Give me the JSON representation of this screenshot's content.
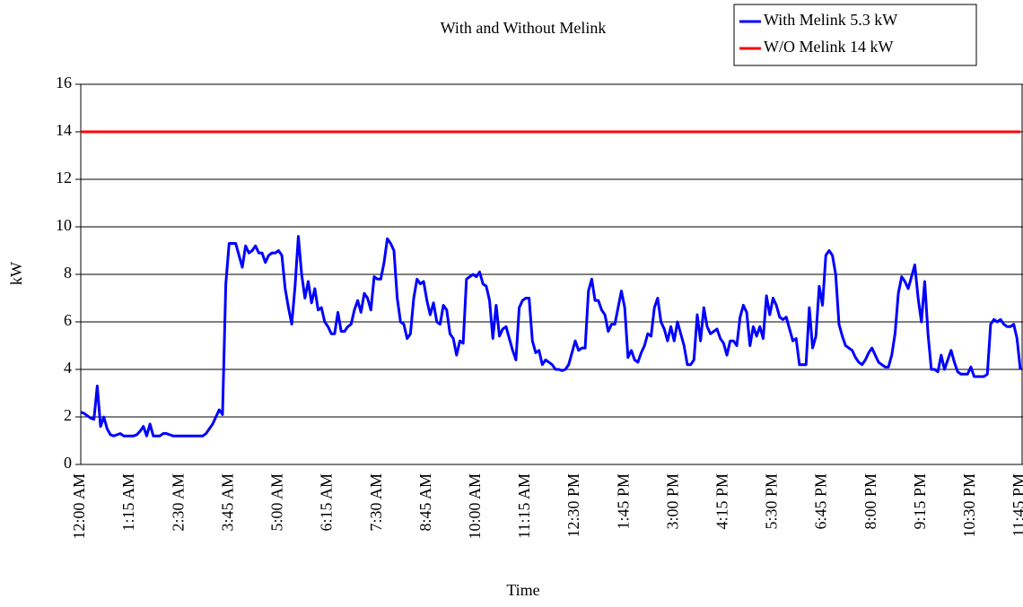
{
  "chart_data": {
    "type": "line",
    "title": "With and Without Melink",
    "x_label": "Time",
    "y_label": "kW",
    "ylim": [
      0,
      16
    ],
    "yticks": [
      0,
      2,
      4,
      6,
      8,
      10,
      12,
      14,
      16
    ],
    "grid": true,
    "legend": "top-right",
    "categories": [
      "12:00 AM",
      null,
      null,
      null,
      null,
      null,
      null,
      null,
      null,
      null,
      null,
      null,
      null,
      null,
      null,
      "1:15 AM",
      null,
      null,
      null,
      null,
      null,
      null,
      null,
      null,
      null,
      null,
      null,
      null,
      null,
      null,
      "2:30 AM",
      null,
      null,
      null,
      null,
      null,
      null,
      null,
      null,
      null,
      null,
      null,
      null,
      null,
      null,
      "3:45 AM",
      null,
      null,
      null,
      null,
      null,
      null,
      null,
      null,
      null,
      null,
      null,
      null,
      null,
      null,
      "5:00 AM",
      null,
      null,
      null,
      null,
      null,
      null,
      null,
      null,
      null,
      null,
      null,
      null,
      null,
      null,
      "6:15 AM",
      null,
      null,
      null,
      null,
      null,
      null,
      null,
      null,
      null,
      null,
      null,
      null,
      null,
      null,
      "7:30 AM",
      null,
      null,
      null,
      null,
      null,
      null,
      null,
      null,
      null,
      null,
      null,
      null,
      null,
      null,
      "8:45 AM",
      null,
      null,
      null,
      null,
      null,
      null,
      null,
      null,
      null,
      null,
      null,
      null,
      null,
      null,
      "10:00 AM",
      null,
      null,
      null,
      null,
      null,
      null,
      null,
      null,
      null,
      null,
      null,
      null,
      null,
      null,
      "11:15 AM",
      null,
      null,
      null,
      null,
      null,
      null,
      null,
      null,
      null,
      null,
      null,
      null,
      null,
      null,
      "12:30 PM",
      null,
      null,
      null,
      null,
      null,
      null,
      null,
      null,
      null,
      null,
      null,
      null,
      null,
      null,
      "1:45 PM",
      null,
      null,
      null,
      null,
      null,
      null,
      null,
      null,
      null,
      null,
      null,
      null,
      null,
      null,
      "3:00 PM",
      null,
      null,
      null,
      null,
      null,
      null,
      null,
      null,
      null,
      null,
      null,
      null,
      null,
      null,
      "4:15 PM",
      null,
      null,
      null,
      null,
      null,
      null,
      null,
      null,
      null,
      null,
      null,
      null,
      null,
      null,
      "5:30 PM",
      null,
      null,
      null,
      null,
      null,
      null,
      null,
      null,
      null,
      null,
      null,
      null,
      null,
      null,
      "6:45 PM",
      null,
      null,
      null,
      null,
      null,
      null,
      null,
      null,
      null,
      null,
      null,
      null,
      null,
      null,
      "8:00 PM",
      null,
      null,
      null,
      null,
      null,
      null,
      null,
      null,
      null,
      null,
      null,
      null,
      null,
      null,
      "9:15 PM",
      null,
      null,
      null,
      null,
      null,
      null,
      null,
      null,
      null,
      null,
      null,
      null,
      null,
      null,
      "10:30 PM",
      null,
      null,
      null,
      null,
      null,
      null,
      null,
      null,
      null,
      null,
      null,
      null,
      null,
      null,
      "11:45 PM"
    ],
    "series": [
      {
        "name": "With Melink 5.3 kW",
        "color": "#0000ff",
        "values": [
          2.2,
          2.15,
          2.05,
          1.95,
          1.9,
          3.3,
          1.6,
          2.0,
          1.5,
          1.25,
          1.2,
          1.25,
          1.3,
          1.2,
          1.2,
          1.2,
          1.2,
          1.25,
          1.4,
          1.6,
          1.2,
          1.7,
          1.2,
          1.2,
          1.2,
          1.3,
          1.3,
          1.25,
          1.2,
          1.2,
          1.2,
          1.2,
          1.2,
          1.2,
          1.2,
          1.2,
          1.2,
          1.2,
          1.3,
          1.5,
          1.7,
          2.0,
          2.3,
          2.1,
          7.6,
          9.3,
          9.3,
          9.3,
          8.8,
          8.3,
          9.2,
          8.9,
          9.0,
          9.2,
          8.9,
          8.9,
          8.5,
          8.8,
          8.9,
          8.9,
          9.0,
          8.8,
          7.4,
          6.6,
          5.9,
          7.5,
          9.6,
          8.0,
          7.0,
          7.7,
          6.8,
          7.4,
          6.5,
          6.6,
          6.0,
          5.8,
          5.5,
          5.5,
          6.4,
          5.6,
          5.6,
          5.8,
          5.9,
          6.5,
          6.9,
          6.4,
          7.2,
          7.0,
          6.5,
          7.9,
          7.8,
          7.8,
          8.5,
          9.5,
          9.3,
          9.0,
          7.0,
          6.0,
          5.9,
          5.3,
          5.5,
          7.0,
          7.8,
          7.6,
          7.7,
          6.9,
          6.3,
          6.8,
          6.0,
          5.9,
          6.7,
          6.5,
          5.5,
          5.3,
          4.6,
          5.2,
          5.1,
          7.8,
          7.9,
          8.0,
          7.9,
          8.1,
          7.6,
          7.5,
          6.9,
          5.3,
          6.7,
          5.4,
          5.7,
          5.8,
          5.3,
          4.8,
          4.4,
          6.6,
          6.9,
          7.0,
          7.0,
          5.2,
          4.7,
          4.8,
          4.2,
          4.4,
          4.3,
          4.2,
          4.0,
          4.0,
          3.95,
          4.0,
          4.2,
          4.7,
          5.2,
          4.8,
          4.9,
          4.9,
          7.3,
          7.8,
          6.9,
          6.9,
          6.5,
          6.3,
          5.6,
          5.9,
          5.9,
          6.6,
          7.3,
          6.6,
          4.5,
          4.8,
          4.4,
          4.3,
          4.7,
          5.0,
          5.5,
          5.4,
          6.6,
          7.0,
          6.0,
          5.7,
          5.2,
          5.8,
          5.2,
          6.0,
          5.5,
          5.0,
          4.2,
          4.2,
          4.4,
          6.3,
          5.2,
          6.6,
          5.8,
          5.5,
          5.6,
          5.7,
          5.3,
          5.1,
          4.6,
          5.2,
          5.2,
          5.0,
          6.2,
          6.7,
          6.4,
          5.0,
          5.8,
          5.4,
          5.8,
          5.3,
          7.1,
          6.3,
          7.0,
          6.7,
          6.2,
          6.1,
          6.2,
          5.7,
          5.2,
          5.3,
          4.2,
          4.2,
          4.2,
          6.6,
          4.9,
          5.4,
          7.5,
          6.7,
          8.8,
          9.0,
          8.8,
          8.0,
          5.9,
          5.4,
          5.0,
          4.9,
          4.8,
          4.5,
          4.3,
          4.2,
          4.4,
          4.7,
          4.9,
          4.6,
          4.3,
          4.2,
          4.1,
          4.1,
          4.6,
          5.5,
          7.2,
          7.9,
          7.7,
          7.4,
          7.9,
          8.4,
          7.0,
          6.0,
          7.7,
          5.5,
          4.0,
          4.0,
          3.9,
          4.6,
          4.0,
          4.4,
          4.8,
          4.3,
          3.9,
          3.8,
          3.8,
          3.8,
          4.1,
          3.7,
          3.7,
          3.7,
          3.7,
          3.8,
          5.9,
          6.1,
          6.0,
          6.1,
          5.9,
          5.8,
          5.8,
          5.9,
          5.3,
          4.0
        ]
      },
      {
        "name": "W/O Melink 14 kW",
        "color": "#ff0000",
        "values": [
          14,
          14,
          14,
          14,
          14,
          14,
          14,
          14,
          14,
          14,
          14,
          14,
          14,
          14,
          14,
          14,
          14,
          14,
          14,
          14,
          14,
          14,
          14,
          14,
          14,
          14,
          14,
          14,
          14,
          14,
          14,
          14,
          14,
          14,
          14,
          14,
          14,
          14,
          14,
          14,
          14,
          14,
          14,
          14,
          14,
          14,
          14,
          14,
          14,
          14,
          14,
          14,
          14,
          14,
          14,
          14,
          14,
          14,
          14,
          14,
          14,
          14,
          14,
          14,
          14,
          14,
          14,
          14,
          14,
          14,
          14,
          14,
          14,
          14,
          14,
          14,
          14,
          14,
          14,
          14,
          14,
          14,
          14,
          14,
          14,
          14,
          14,
          14,
          14,
          14,
          14,
          14,
          14,
          14,
          14,
          14,
          14,
          14,
          14,
          14,
          14,
          14,
          14,
          14,
          14,
          14,
          14,
          14,
          14,
          14,
          14,
          14,
          14,
          14,
          14,
          14,
          14,
          14,
          14,
          14,
          14,
          14,
          14,
          14,
          14,
          14,
          14,
          14,
          14,
          14,
          14,
          14,
          14,
          14,
          14,
          14,
          14,
          14,
          14,
          14,
          14,
          14,
          14,
          14,
          14,
          14,
          14,
          14,
          14,
          14,
          14,
          14,
          14,
          14,
          14,
          14,
          14,
          14,
          14,
          14,
          14,
          14,
          14,
          14,
          14,
          14,
          14,
          14,
          14,
          14,
          14,
          14,
          14,
          14,
          14,
          14,
          14,
          14,
          14,
          14,
          14,
          14,
          14,
          14,
          14,
          14,
          14,
          14,
          14,
          14,
          14,
          14,
          14,
          14,
          14,
          14,
          14,
          14,
          14,
          14,
          14,
          14,
          14,
          14,
          14,
          14,
          14,
          14,
          14,
          14,
          14,
          14,
          14,
          14,
          14,
          14,
          14,
          14,
          14,
          14,
          14,
          14,
          14,
          14,
          14,
          14,
          14,
          14,
          14,
          14,
          14,
          14,
          14,
          14,
          14,
          14,
          14,
          14,
          14,
          14,
          14,
          14,
          14,
          14,
          14,
          14,
          14,
          14,
          14,
          14,
          14,
          14,
          14,
          14,
          14,
          14,
          14,
          14,
          14,
          14,
          14,
          14,
          14,
          14,
          14,
          14,
          14,
          14,
          14,
          14,
          14,
          14,
          14,
          14,
          14,
          14,
          14,
          14,
          14,
          14,
          14,
          14,
          14,
          14,
          14,
          14
        ]
      }
    ]
  }
}
